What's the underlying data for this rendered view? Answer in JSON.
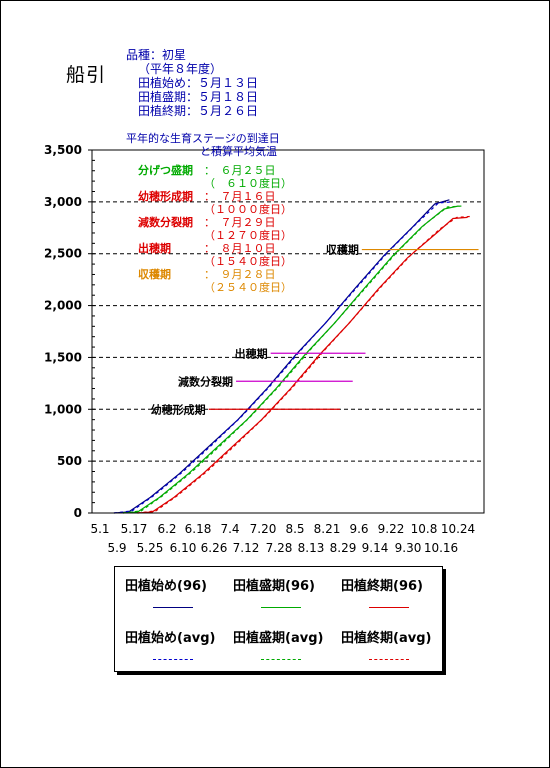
{
  "place": "船引",
  "variety_info": [
    "品種：初星",
    "（平年８年度）",
    "田植始め：５月１３日",
    "田植盛期：５月１８日",
    "田植終期：５月２６日"
  ],
  "chart_heading": [
    "平年的な生育ステージの到達日",
    "と積算平均気温"
  ],
  "stages": [
    {
      "label": "分げつ盛期",
      "date": "：　６月２５日",
      "temp": "（　６１０度日）",
      "color": "#00aa00"
    },
    {
      "label": "幼穂形成期",
      "date": "：　７月１６日",
      "temp": "（１０００度日）",
      "color": "#dd0000"
    },
    {
      "label": "減数分裂期",
      "date": "：　７月２９日",
      "temp": "（１２７０度日）",
      "color": "#dd0000"
    },
    {
      "label": "出穂期",
      "date": "：　８月１０日",
      "temp": "（１５４０度日）",
      "color": "#dd0000"
    },
    {
      "label": "収穫期",
      "date": "：　９月２８日",
      "temp": "（２５４０度日）",
      "color": "#dd8800"
    }
  ],
  "chart_data": {
    "type": "line",
    "y_ticks": [
      "0",
      "500",
      "1,000",
      "1,500",
      "2,000",
      "2,500",
      "3,000",
      "3,500"
    ],
    "ylim": [
      0,
      3500
    ],
    "x_ticks_top": [
      "5.1",
      "5.17",
      "6.2",
      "6.18",
      "7.4",
      "7.20",
      "8.5",
      "8.21",
      "9.6",
      "9.22",
      "10.8",
      "10.24"
    ],
    "x_ticks_bottom": [
      "5.9",
      "5.25",
      "6.10",
      "6.26",
      "7.12",
      "7.28",
      "8.13",
      "8.29",
      "9.14",
      "9.30",
      "10.16"
    ],
    "x_range_days": [
      0,
      184
    ],
    "gridlines_y": [
      500,
      1000,
      1500,
      2000,
      2500,
      3000
    ],
    "series": [
      {
        "name": "田植始め(96)",
        "color": "#000080",
        "dash": "",
        "points": [
          [
            12,
            0
          ],
          [
            20,
            10
          ],
          [
            32,
            150
          ],
          [
            48,
            380
          ],
          [
            64,
            640
          ],
          [
            80,
            900
          ],
          [
            96,
            1200
          ],
          [
            112,
            1530
          ],
          [
            128,
            1830
          ],
          [
            144,
            2160
          ],
          [
            160,
            2480
          ],
          [
            176,
            2760
          ],
          [
            188,
            2980
          ],
          [
            196,
            3020
          ]
        ]
      },
      {
        "name": "田植盛期(96)",
        "color": "#00aa00",
        "dash": "",
        "points": [
          [
            17,
            0
          ],
          [
            25,
            10
          ],
          [
            37,
            150
          ],
          [
            53,
            380
          ],
          [
            69,
            640
          ],
          [
            85,
            900
          ],
          [
            101,
            1200
          ],
          [
            117,
            1530
          ],
          [
            133,
            1830
          ],
          [
            149,
            2160
          ],
          [
            165,
            2480
          ],
          [
            181,
            2760
          ],
          [
            193,
            2930
          ],
          [
            201,
            2960
          ]
        ]
      },
      {
        "name": "田植終期(96)",
        "color": "#dd0000",
        "dash": "",
        "points": [
          [
            25,
            0
          ],
          [
            33,
            10
          ],
          [
            45,
            150
          ],
          [
            61,
            380
          ],
          [
            77,
            640
          ],
          [
            93,
            900
          ],
          [
            109,
            1200
          ],
          [
            125,
            1530
          ],
          [
            141,
            1830
          ],
          [
            157,
            2160
          ],
          [
            173,
            2460
          ],
          [
            189,
            2700
          ],
          [
            198,
            2840
          ],
          [
            206,
            2850
          ]
        ]
      },
      {
        "name": "田植始め(avg)",
        "color": "#0000cc",
        "dash": "3,3",
        "points": [
          [
            12,
            0
          ],
          [
            22,
            20
          ],
          [
            34,
            170
          ],
          [
            50,
            400
          ],
          [
            66,
            660
          ],
          [
            82,
            930
          ],
          [
            98,
            1230
          ],
          [
            114,
            1560
          ],
          [
            130,
            1870
          ],
          [
            146,
            2190
          ],
          [
            162,
            2510
          ],
          [
            178,
            2790
          ],
          [
            190,
            2990
          ],
          [
            198,
            3000
          ]
        ]
      },
      {
        "name": "田植盛期(avg)",
        "color": "#00aa00",
        "dash": "3,3",
        "points": [
          [
            17,
            0
          ],
          [
            27,
            20
          ],
          [
            39,
            170
          ],
          [
            55,
            400
          ],
          [
            71,
            660
          ],
          [
            87,
            930
          ],
          [
            103,
            1230
          ],
          [
            119,
            1560
          ],
          [
            135,
            1870
          ],
          [
            151,
            2190
          ],
          [
            167,
            2510
          ],
          [
            183,
            2790
          ],
          [
            195,
            2950
          ],
          [
            203,
            2960
          ]
        ]
      },
      {
        "name": "田植終期(avg)",
        "color": "#dd0000",
        "dash": "3,3",
        "points": [
          [
            25,
            0
          ],
          [
            35,
            20
          ],
          [
            47,
            170
          ],
          [
            63,
            400
          ],
          [
            79,
            660
          ],
          [
            95,
            930
          ],
          [
            111,
            1230
          ],
          [
            127,
            1560
          ],
          [
            143,
            1870
          ],
          [
            159,
            2190
          ],
          [
            175,
            2490
          ],
          [
            191,
            2740
          ],
          [
            200,
            2850
          ],
          [
            208,
            2860
          ]
        ]
      }
    ],
    "stage_markers": [
      {
        "label": "幼穂形成期",
        "y": 1000,
        "x_from": 64,
        "x_to": 136,
        "color": "#dd0000"
      },
      {
        "label": "減数分裂期",
        "y": 1270,
        "x_from": 79,
        "x_to": 143,
        "color": "#cc00cc"
      },
      {
        "label": "出穂期",
        "y": 1540,
        "x_from": 98,
        "x_to": 150,
        "color": "#cc00cc"
      },
      {
        "label": "収穫期",
        "y": 2540,
        "x_from": 148,
        "x_to": 212,
        "color": "#dd8800"
      }
    ]
  },
  "legend": [
    {
      "label": "田植始め(96)",
      "color": "#000080",
      "dash": "solid"
    },
    {
      "label": "田植盛期(96)",
      "color": "#00aa00",
      "dash": "solid"
    },
    {
      "label": "田植終期(96)",
      "color": "#dd0000",
      "dash": "solid"
    },
    {
      "label": "田植始め(avg)",
      "color": "#0000cc",
      "dash": "dashed"
    },
    {
      "label": "田植盛期(avg)",
      "color": "#00aa00",
      "dash": "dashed"
    },
    {
      "label": "田植終期(avg)",
      "color": "#dd0000",
      "dash": "dashed"
    }
  ]
}
